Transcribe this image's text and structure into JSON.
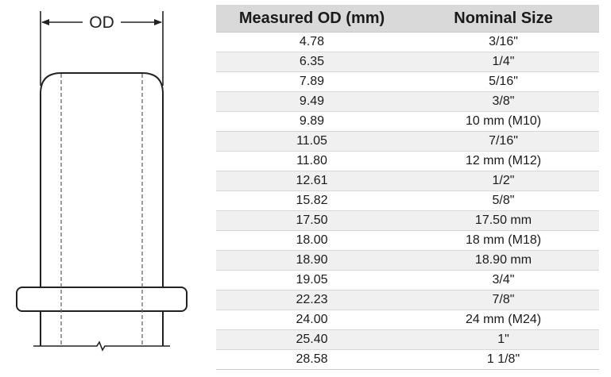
{
  "drawing": {
    "dimension_label": "OD",
    "line_color": "#222222",
    "hidden_line_color": "#666666"
  },
  "table": {
    "headers": {
      "measured": "Measured OD (mm)",
      "nominal": "Nominal Size"
    },
    "header_bg": "#d9d9d9",
    "stripe_bg": "#f0f0f0",
    "rows": [
      {
        "measured": "4.78",
        "nominal": "3/16\""
      },
      {
        "measured": "6.35",
        "nominal": "1/4\""
      },
      {
        "measured": "7.89",
        "nominal": "5/16\""
      },
      {
        "measured": "9.49",
        "nominal": "3/8\""
      },
      {
        "measured": "9.89",
        "nominal": "10 mm (M10)"
      },
      {
        "measured": "11.05",
        "nominal": "7/16\""
      },
      {
        "measured": "11.80",
        "nominal": "12 mm (M12)"
      },
      {
        "measured": "12.61",
        "nominal": "1/2\""
      },
      {
        "measured": "15.82",
        "nominal": "5/8\""
      },
      {
        "measured": "17.50",
        "nominal": "17.50 mm"
      },
      {
        "measured": "18.00",
        "nominal": "18 mm (M18)"
      },
      {
        "measured": "18.90",
        "nominal": "18.90 mm"
      },
      {
        "measured": "19.05",
        "nominal": "3/4\""
      },
      {
        "measured": "22.23",
        "nominal": "7/8\""
      },
      {
        "measured": "24.00",
        "nominal": "24 mm (M24)"
      },
      {
        "measured": "25.40",
        "nominal": "1\""
      },
      {
        "measured": "28.58",
        "nominal": "1 1/8\""
      }
    ]
  }
}
